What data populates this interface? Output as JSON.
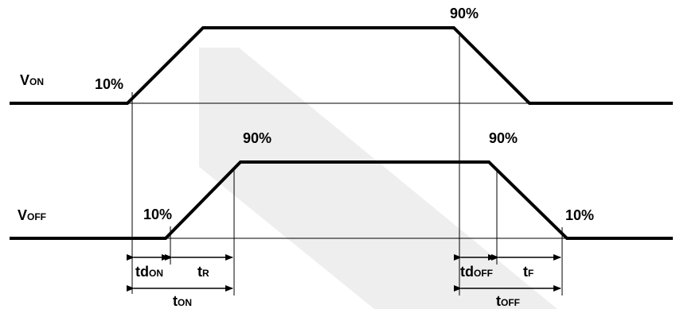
{
  "labels": {
    "von_main": "V",
    "von_sub": "ON",
    "voff_main": "V",
    "voff_sub": "OFF",
    "von_10": "10%",
    "von_90": "90%",
    "voff_90_rise": "90%",
    "voff_90_fall": "90%",
    "voff_10_rise": "10%",
    "voff_10_fall": "10%",
    "td_on_main": "td",
    "td_on_sub": "ON",
    "tr_main": "t",
    "tr_sub": "R",
    "ton_main": "t",
    "ton_sub": "ON",
    "td_off_main": "td",
    "td_off_sub": "OFF",
    "tf_main": "t",
    "tf_sub": "F",
    "toff_main": "t",
    "toff_sub": "OFF"
  }
}
